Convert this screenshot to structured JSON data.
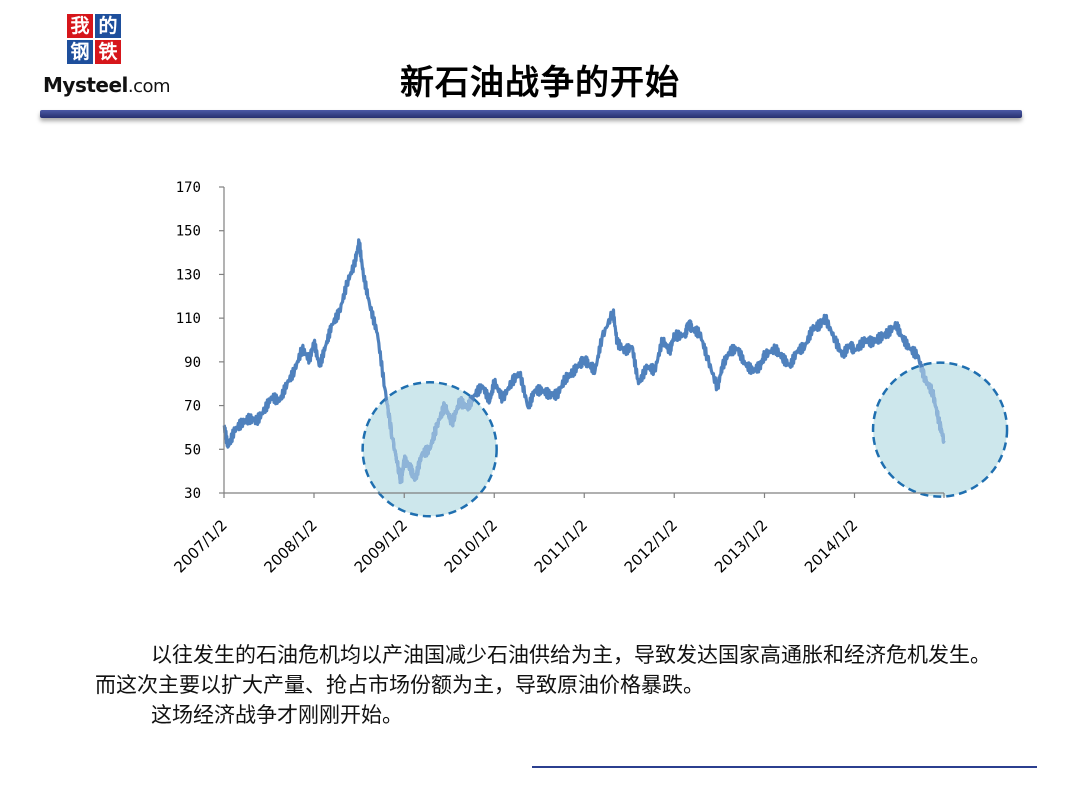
{
  "logo": {
    "chars": [
      "我",
      "的",
      "钢",
      "铁"
    ],
    "brand_main": "Mysteel",
    "brand_suffix": ".com"
  },
  "slide": {
    "title": "新石油战争的开始",
    "paragraphs": [
      "以往发生的石油危机均以产油国减少石油供给为主，导致发达国家高通胀和经济危机发生。而这次主要以扩大产量、抢占市场份额为主，导致原油价格暴跌。",
      "这场经济战争才刚刚开始。"
    ]
  },
  "colors": {
    "line": "#4f81bd",
    "line_in_highlight": "#8eb4d8",
    "highlight_fill": "#cde7ec",
    "highlight_stroke": "#1f6fb0",
    "title_rule": "#2b3f8f"
  },
  "chart_data": {
    "type": "line",
    "title": "",
    "xlabel": "",
    "ylabel": "",
    "ylim": [
      30,
      170
    ],
    "yticks": [
      "170",
      "150",
      "130",
      "110",
      "90",
      "70",
      "50",
      "30"
    ],
    "ytick_values": [
      170,
      150,
      130,
      110,
      90,
      70,
      50,
      30
    ],
    "xlim": [
      "2007-01-02",
      "2014-12-31"
    ],
    "xticks": [
      "2007/1/2",
      "2008/1/2",
      "2009/1/2",
      "2010/1/2",
      "2011/1/2",
      "2012/1/2",
      "2013/1/2",
      "2014/1/2"
    ],
    "grid": false,
    "legend": "none",
    "series": [
      {
        "points": [
          [
            "2007-01-02",
            61
          ],
          [
            "2007-01-18",
            51
          ],
          [
            "2007-02-15",
            59
          ],
          [
            "2007-03-15",
            62
          ],
          [
            "2007-04-15",
            64
          ],
          [
            "2007-05-15",
            63
          ],
          [
            "2007-06-15",
            68
          ],
          [
            "2007-07-15",
            74
          ],
          [
            "2007-08-15",
            72
          ],
          [
            "2007-09-15",
            80
          ],
          [
            "2007-10-15",
            86
          ],
          [
            "2007-11-15",
            96
          ],
          [
            "2007-12-15",
            91
          ],
          [
            "2008-01-02",
            99
          ],
          [
            "2008-01-25",
            88
          ],
          [
            "2008-02-20",
            98
          ],
          [
            "2008-03-15",
            107
          ],
          [
            "2008-04-15",
            113
          ],
          [
            "2008-05-15",
            126
          ],
          [
            "2008-06-15",
            135
          ],
          [
            "2008-07-03",
            145
          ],
          [
            "2008-07-20",
            130
          ],
          [
            "2008-08-15",
            116
          ],
          [
            "2008-09-15",
            103
          ],
          [
            "2008-10-15",
            78
          ],
          [
            "2008-11-15",
            55
          ],
          [
            "2008-12-20",
            35
          ],
          [
            "2009-01-02",
            45
          ],
          [
            "2009-01-25",
            42
          ],
          [
            "2009-02-15",
            36
          ],
          [
            "2009-03-15",
            48
          ],
          [
            "2009-04-15",
            50
          ],
          [
            "2009-05-15",
            61
          ],
          [
            "2009-06-15",
            70
          ],
          [
            "2009-07-15",
            62
          ],
          [
            "2009-08-15",
            72
          ],
          [
            "2009-09-15",
            69
          ],
          [
            "2009-10-15",
            75
          ],
          [
            "2009-11-15",
            79
          ],
          [
            "2009-12-15",
            72
          ],
          [
            "2010-01-02",
            81
          ],
          [
            "2010-02-05",
            73
          ],
          [
            "2010-03-15",
            81
          ],
          [
            "2010-04-15",
            85
          ],
          [
            "2010-05-20",
            69
          ],
          [
            "2010-06-15",
            77
          ],
          [
            "2010-07-15",
            77
          ],
          [
            "2010-08-15",
            75
          ],
          [
            "2010-09-15",
            75
          ],
          [
            "2010-10-15",
            82
          ],
          [
            "2010-11-15",
            85
          ],
          [
            "2010-12-15",
            89
          ],
          [
            "2011-01-02",
            91
          ],
          [
            "2011-01-20",
            89
          ],
          [
            "2011-02-15",
            86
          ],
          [
            "2011-03-15",
            101
          ],
          [
            "2011-04-29",
            113
          ],
          [
            "2011-05-15",
            99
          ],
          [
            "2011-06-15",
            95
          ],
          [
            "2011-07-15",
            97
          ],
          [
            "2011-08-10",
            80
          ],
          [
            "2011-09-15",
            88
          ],
          [
            "2011-10-15",
            86
          ],
          [
            "2011-11-15",
            100
          ],
          [
            "2011-12-15",
            95
          ],
          [
            "2012-01-02",
            102
          ],
          [
            "2012-02-15",
            102
          ],
          [
            "2012-02-29",
            108
          ],
          [
            "2012-03-15",
            105
          ],
          [
            "2012-04-15",
            103
          ],
          [
            "2012-05-15",
            92
          ],
          [
            "2012-06-25",
            78
          ],
          [
            "2012-07-15",
            88
          ],
          [
            "2012-08-15",
            95
          ],
          [
            "2012-09-15",
            96
          ],
          [
            "2012-10-15",
            89
          ],
          [
            "2012-11-15",
            86
          ],
          [
            "2012-12-15",
            88
          ],
          [
            "2013-01-02",
            93
          ],
          [
            "2013-02-15",
            96
          ],
          [
            "2013-03-15",
            92
          ],
          [
            "2013-04-15",
            88
          ],
          [
            "2013-05-15",
            95
          ],
          [
            "2013-06-15",
            97
          ],
          [
            "2013-07-15",
            105
          ],
          [
            "2013-08-15",
            107
          ],
          [
            "2013-09-06",
            110
          ],
          [
            "2013-10-15",
            100
          ],
          [
            "2013-11-15",
            93
          ],
          [
            "2013-12-15",
            98
          ],
          [
            "2014-01-02",
            95
          ],
          [
            "2014-02-15",
            100
          ],
          [
            "2014-03-15",
            99
          ],
          [
            "2014-04-15",
            101
          ],
          [
            "2014-05-15",
            103
          ],
          [
            "2014-06-20",
            107
          ],
          [
            "2014-07-15",
            101
          ],
          [
            "2014-08-15",
            96
          ],
          [
            "2014-09-15",
            93
          ],
          [
            "2014-10-15",
            82
          ],
          [
            "2014-11-15",
            76
          ],
          [
            "2014-12-10",
            63
          ],
          [
            "2014-12-31",
            54
          ]
        ]
      }
    ],
    "highlights": [
      {
        "center": [
          "2009-04-15",
          50
        ],
        "color": "#cde7ec"
      },
      {
        "center": [
          "2014-12-15",
          59
        ],
        "color": "#cde7ec"
      }
    ]
  }
}
